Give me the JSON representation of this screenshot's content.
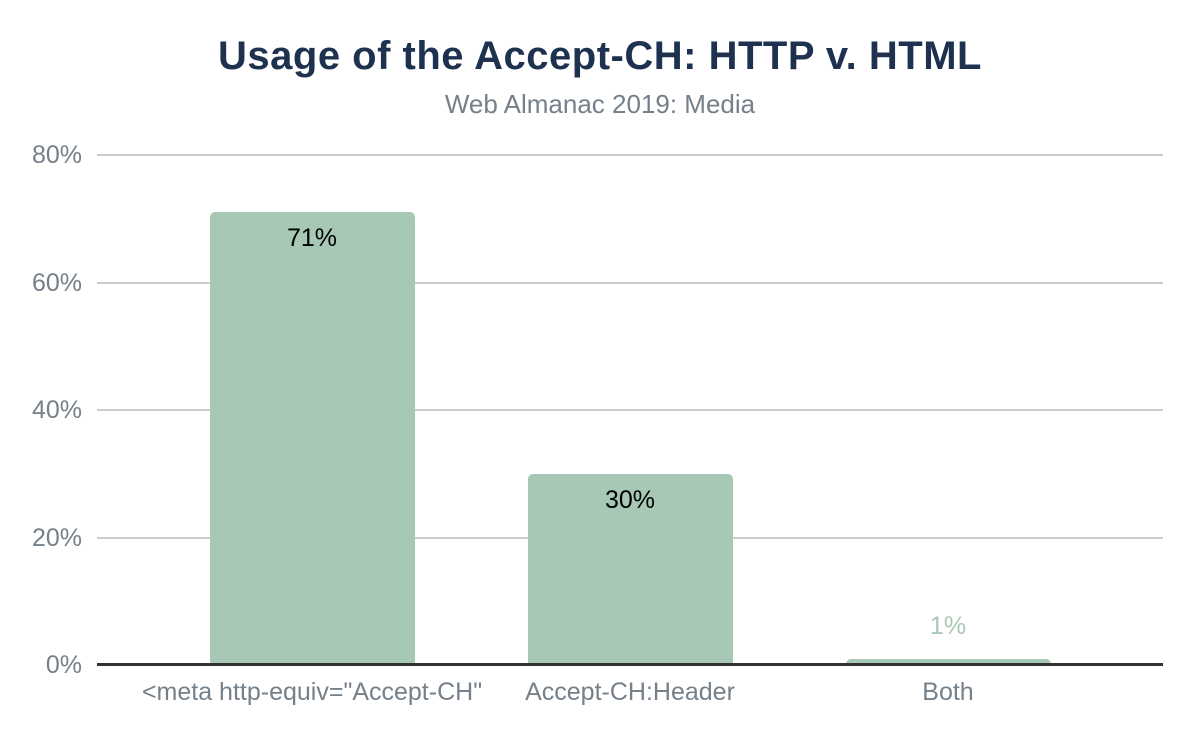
{
  "title": "Usage of the Accept-CH: HTTP v. HTML",
  "subtitle": "Web Almanac 2019: Media",
  "colors": {
    "bar": "#a6c8b5",
    "title": "#1e3250",
    "subtitle": "#75808a",
    "axis_label": "#75808a",
    "gridline": "#cccccc",
    "axis_line": "#333333",
    "value_label_inside": "#000000",
    "value_label_outside": "#a6c8b5",
    "background": "#ffffff"
  },
  "chart_data": {
    "type": "bar",
    "title": "Usage of the Accept-CH: HTTP v. HTML",
    "subtitle": "Web Almanac 2019: Media",
    "categories": [
      "<meta http-equiv=\"Accept-CH\"",
      "Accept-CH:Header",
      "Both"
    ],
    "values": [
      71,
      30,
      1
    ],
    "value_labels": [
      "71%",
      "30%",
      "1%"
    ],
    "xlabel": "",
    "ylabel": "",
    "ylim": [
      0,
      80
    ],
    "ytick_values": [
      0,
      20,
      40,
      60,
      80
    ],
    "ytick_labels": [
      "0%",
      "20%",
      "40%",
      "60%",
      "80%"
    ],
    "grid": true,
    "legend_position": "none"
  }
}
